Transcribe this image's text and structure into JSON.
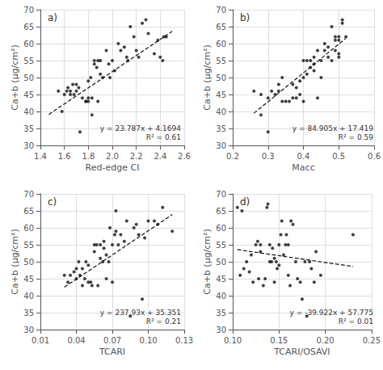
{
  "chart_data": [
    {
      "type": "scatter",
      "title": "a)",
      "x_label": "Red-edge CI",
      "y_label": "Ca+b (μg/cm²)",
      "annotations": [
        "y = 23.787x + 4.1694",
        "R² = 0.61"
      ],
      "xlim": [
        1.4,
        2.6
      ],
      "xticks": [
        1.4,
        1.6,
        1.8,
        {
          "value": 2.0,
          "label": "2.0"
        },
        2.2,
        2.4,
        2.6
      ],
      "ylim": [
        30,
        70
      ],
      "yticks": [
        30,
        35,
        40,
        45,
        50,
        55,
        60,
        65,
        70
      ],
      "grid": true,
      "series": [
        {
          "type": "scatter",
          "color": "#111111",
          "x": [
            1.55,
            1.58,
            1.6,
            1.62,
            1.63,
            1.65,
            1.65,
            1.67,
            1.68,
            1.7,
            1.7,
            1.72,
            1.73,
            1.75,
            1.78,
            1.78,
            1.8,
            1.8,
            1.8,
            1.82,
            1.83,
            1.83,
            1.85,
            1.85,
            1.87,
            1.88,
            1.88,
            1.9,
            1.9,
            1.92,
            1.95,
            1.97,
            1.98,
            2.0,
            2.02,
            2.05,
            2.07,
            2.1,
            2.12,
            2.13,
            2.15,
            2.18,
            2.2,
            2.22,
            2.25,
            2.28,
            2.3,
            2.35,
            2.38,
            2.4,
            2.42,
            2.43,
            2.45
          ],
          "values": [
            46,
            40,
            45,
            46,
            47,
            45,
            46,
            48,
            45,
            48,
            46,
            47,
            34,
            44,
            43,
            43,
            44,
            43,
            49,
            50,
            44,
            39,
            54,
            55,
            53,
            55,
            43,
            51,
            55,
            50,
            58,
            54,
            50,
            55,
            52,
            60,
            58,
            59,
            56,
            55,
            65,
            62,
            58,
            56,
            66,
            67,
            63,
            57,
            61,
            56,
            55,
            62,
            62
          ]
        },
        {
          "type": "line",
          "line_style": "dashed",
          "color": "#111111",
          "x": [
            1.47,
            2.5
          ],
          "values": [
            39.13629,
            63.6369
          ]
        }
      ]
    },
    {
      "type": "scatter",
      "title": "b)",
      "x_label": "Macc",
      "y_label": "Ca+b (μg/cm²)",
      "annotations": [
        "y = 84.905x + 17.419",
        "R² = 0.59"
      ],
      "xlim": [
        0.2,
        0.6
      ],
      "xticks": [
        0.2,
        0.3,
        0.4,
        0.5,
        0.6
      ],
      "ylim": [
        30,
        70
      ],
      "yticks": [
        30,
        35,
        40,
        45,
        50,
        55,
        60,
        65,
        70
      ],
      "grid": true,
      "series": [
        {
          "type": "scatter",
          "color": "#111111",
          "x": [
            0.26,
            0.28,
            0.28,
            0.3,
            0.3,
            0.31,
            0.32,
            0.33,
            0.33,
            0.34,
            0.34,
            0.35,
            0.36,
            0.37,
            0.37,
            0.38,
            0.38,
            0.39,
            0.39,
            0.4,
            0.4,
            0.4,
            0.41,
            0.41,
            0.42,
            0.42,
            0.43,
            0.43,
            0.43,
            0.44,
            0.44,
            0.45,
            0.45,
            0.46,
            0.46,
            0.47,
            0.47,
            0.48,
            0.48,
            0.49,
            0.49,
            0.49,
            0.5,
            0.5,
            0.5,
            0.5,
            0.51,
            0.51,
            0.52
          ],
          "values": [
            46,
            45,
            39,
            34,
            44,
            46,
            45,
            46,
            48,
            43,
            50,
            43,
            43,
            44,
            48,
            44,
            47,
            49,
            45,
            50,
            55,
            43,
            55,
            51,
            53,
            55,
            56,
            54,
            52,
            58,
            44,
            55,
            50,
            60,
            58,
            56,
            59,
            55,
            65,
            61,
            62,
            58,
            57,
            56,
            62,
            61,
            67,
            66,
            62
          ]
        },
        {
          "type": "line",
          "line_style": "dashed",
          "color": "#111111",
          "x": [
            0.26,
            0.52
          ],
          "values": [
            39.4943,
            61.5696
          ]
        }
      ]
    },
    {
      "type": "scatter",
      "title": "c)",
      "x_label": "TCARI",
      "y_label": "Ca+b (μg/cm²)",
      "annotations": [
        "y = 237.93x + 35.351",
        "R² = 0.21"
      ],
      "xlim": [
        0.01,
        0.13
      ],
      "xticks": [
        0.01,
        0.04,
        0.07,
        {
          "value": 0.1,
          "label": "0.10"
        },
        0.13
      ],
      "ylim": [
        30,
        70
      ],
      "yticks": [
        30,
        35,
        40,
        45,
        50,
        55,
        60,
        65,
        70
      ],
      "grid": true,
      "series": [
        {
          "type": "scatter",
          "color": "#111111",
          "x": [
            0.03,
            0.033,
            0.035,
            0.038,
            0.04,
            0.04,
            0.042,
            0.043,
            0.045,
            0.045,
            0.047,
            0.048,
            0.05,
            0.05,
            0.052,
            0.053,
            0.055,
            0.055,
            0.057,
            0.058,
            0.06,
            0.06,
            0.062,
            0.063,
            0.063,
            0.065,
            0.065,
            0.067,
            0.068,
            0.07,
            0.07,
            0.072,
            0.073,
            0.073,
            0.075,
            0.077,
            0.08,
            0.082,
            0.085,
            0.088,
            0.09,
            0.092,
            0.095,
            0.097,
            0.1,
            0.105,
            0.108,
            0.112,
            0.12
          ],
          "values": [
            46,
            44,
            46,
            47,
            48,
            45,
            50,
            46,
            43,
            48,
            45,
            50,
            49,
            44,
            44,
            43,
            53,
            55,
            55,
            43,
            55,
            51,
            50,
            56,
            54,
            52,
            45,
            50,
            60,
            55,
            44,
            58,
            59,
            65,
            55,
            58,
            56,
            62,
            34,
            60,
            61,
            58,
            39,
            57,
            62,
            62,
            61,
            66,
            59
          ]
        },
        {
          "type": "line",
          "line_style": "dashed",
          "color": "#111111",
          "x": [
            0.03,
            0.12
          ],
          "values": [
            42.4889,
            63.9026
          ]
        }
      ]
    },
    {
      "type": "scatter",
      "title": "d)",
      "x_label": "TCARI/OSAVI",
      "y_label": "Ca+b (μg/cm²)",
      "annotations": [
        "y = -39.922x + 57.775",
        "R² = 0.01"
      ],
      "xlim": [
        0.1,
        0.25
      ],
      "xticks": [
        {
          "value": 0.1,
          "label": "0.10"
        },
        0.15,
        {
          "value": 0.2,
          "label": "0.20"
        },
        0.25
      ],
      "ylim": [
        30,
        70
      ],
      "yticks": [
        30,
        35,
        40,
        45,
        50,
        55,
        60,
        65,
        70
      ],
      "grid": true,
      "series": [
        {
          "type": "scatter",
          "color": "#111111",
          "x": [
            0.105,
            0.108,
            0.11,
            0.112,
            0.115,
            0.118,
            0.12,
            0.122,
            0.125,
            0.127,
            0.128,
            0.13,
            0.13,
            0.133,
            0.135,
            0.137,
            0.138,
            0.14,
            0.14,
            0.142,
            0.143,
            0.145,
            0.145,
            0.147,
            0.148,
            0.15,
            0.15,
            0.152,
            0.153,
            0.155,
            0.157,
            0.158,
            0.16,
            0.16,
            0.162,
            0.163,
            0.165,
            0.168,
            0.17,
            0.173,
            0.175,
            0.178,
            0.18,
            0.183,
            0.185,
            0.188,
            0.19,
            0.195,
            0.23
          ],
          "values": [
            66,
            46,
            65,
            48,
            50,
            47,
            52,
            44,
            55,
            56,
            45,
            53,
            55,
            43,
            45,
            66,
            67,
            50,
            55,
            50,
            54,
            51,
            44,
            50,
            48,
            49,
            55,
            58,
            62,
            52,
            55,
            58,
            46,
            55,
            43,
            62,
            61,
            50,
            45,
            44,
            39,
            50,
            34,
            50,
            48,
            44,
            53,
            46,
            58
          ]
        },
        {
          "type": "line",
          "line_style": "dashed",
          "color": "#111111",
          "x": [
            0.105,
            0.23
          ],
          "values": [
            53.58319,
            48.59294
          ]
        }
      ]
    }
  ]
}
